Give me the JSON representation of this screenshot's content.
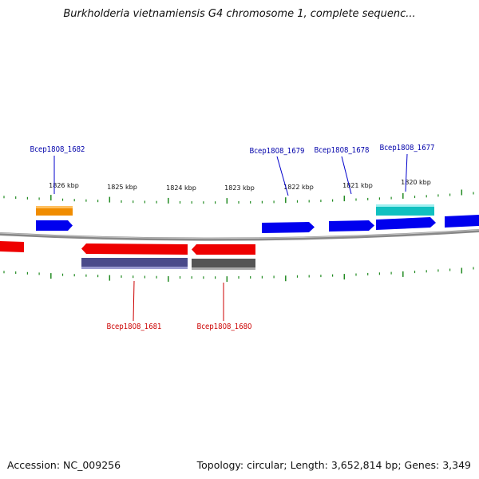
{
  "title": "Burkholderia vietnamiensis G4 chromosome 1, complete sequenc...",
  "footer": {
    "accession": "Accession: NC_009256",
    "topology": "Topology: circular; Length: 3,652,814 bp; Genes: 3,349"
  },
  "colors": {
    "forward_gene": "#0000ee",
    "reverse_gene": "#ee0000",
    "forward_label": "#0000aa",
    "reverse_label": "#cc0000",
    "tick": "#228b22",
    "backbone": "#888888",
    "feature_orange": "#f08c00",
    "feature_cyan": "#10c0c0",
    "feature_slate": "#4a4a8a",
    "feature_gray": "#555555"
  },
  "ruler": {
    "labels": [
      "1826 kbp",
      "1825 kbp",
      "1824 kbp",
      "1823 kbp",
      "1822 kbp",
      "1821 kbp",
      "1820 kbp"
    ]
  },
  "gene_labels": {
    "top": [
      "Bcep1808_1682",
      "Bcep1808_1679",
      "Bcep1808_1678",
      "Bcep1808_1677"
    ],
    "bottom": [
      "Bcep1808_1681",
      "Bcep1808_1680"
    ]
  }
}
